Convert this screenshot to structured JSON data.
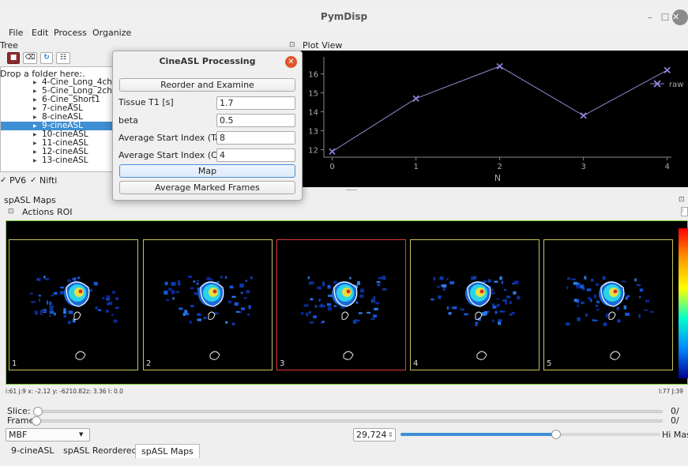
{
  "window": {
    "title": "PymDisp"
  },
  "menu": [
    "File",
    "Edit",
    "Process",
    "Organize"
  ],
  "tree": {
    "title": "Tree",
    "drop_label": "Drop a folder here:.",
    "items": [
      {
        "label": "4-Cine_Long_4ch"
      },
      {
        "label": "5-Cine_Long_2ch"
      },
      {
        "label": "6-Cine_Short1"
      },
      {
        "label": "7-cineASL"
      },
      {
        "label": "8-cineASL"
      },
      {
        "label": "9-cineASL",
        "selected": true
      },
      {
        "label": "10-cineASL"
      },
      {
        "label": "11-cineASL"
      },
      {
        "label": "12-cineASL"
      },
      {
        "label": "13-cineASL"
      }
    ],
    "checks": [
      {
        "label": "PV6",
        "checked": true
      },
      {
        "label": "Nifti",
        "checked": true
      }
    ]
  },
  "dialog": {
    "title": "CineASL Processing",
    "reorder_button": "Reorder and Examine",
    "fields": [
      {
        "label": "Tissue T1 [s]",
        "value": "1.7"
      },
      {
        "label": "beta",
        "value": "0.5"
      },
      {
        "label": "Average Start Index (Tag)",
        "value": "8"
      },
      {
        "label": "Average Start Index (Ctrl)",
        "value": "4"
      }
    ],
    "map_button": "Map",
    "average_button": "Average Marked Frames"
  },
  "plot_view": {
    "title": "Plot View",
    "chart_data": {
      "type": "line",
      "x": [
        0,
        1,
        2,
        3,
        4
      ],
      "series": [
        {
          "name": "raw",
          "values": [
            11.9,
            14.7,
            16.4,
            13.8,
            16.2
          ]
        }
      ],
      "xlabel": "N",
      "ylabel": "",
      "xlim": [
        -0.1,
        4.05
      ],
      "ylim": [
        11.6,
        16.9
      ],
      "xticks": [
        0,
        1,
        2,
        3,
        4
      ],
      "yticks": [
        12,
        13,
        14,
        15,
        16
      ],
      "legend": "right",
      "colors": {
        "line": "#8a8ac8",
        "marker": "#9a8ae8",
        "text": "#aaaaaa"
      }
    }
  },
  "maps": {
    "title": "spASL Maps",
    "toolbar": [
      "Actions",
      "ROI"
    ],
    "frames": [
      {
        "label": "1",
        "active": false
      },
      {
        "label": "2",
        "active": false
      },
      {
        "label": "3",
        "active": true
      },
      {
        "label": "4",
        "active": false
      },
      {
        "label": "5",
        "active": false
      }
    ],
    "status_left": "i:61   j:9     x: -2.12   y: -6210.82z: 3.36    I: 0.0",
    "status_right": "I:77  J:39"
  },
  "controls": {
    "slice_label": "Slice:",
    "frame_label": "Frame:",
    "slice_value": "0/",
    "frame_value": "0/",
    "map_type": "MBF",
    "spin_value": "29,724",
    "threshold": 0.6,
    "hi_mask_label": "Hi Mas"
  },
  "tabs": [
    {
      "label": "9-cineASL",
      "selected": false
    },
    {
      "label": "spASL Reordered",
      "selected": false
    },
    {
      "label": "spASL Maps",
      "selected": true
    }
  ]
}
